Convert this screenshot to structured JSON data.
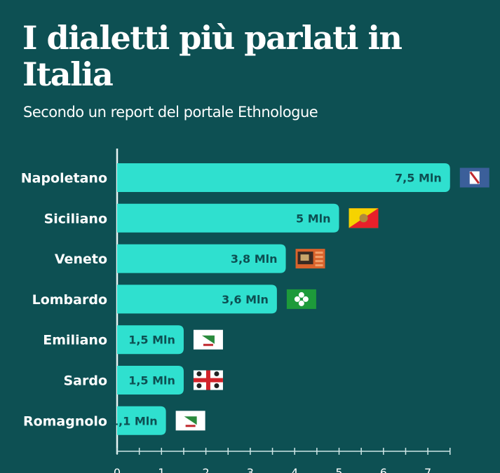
{
  "title": "I dialetti più parlati in Italia",
  "subtitle": "Secondo un report del portale Ethnologue",
  "colors": {
    "background": "#0d5053",
    "bar": "#2fe0cf",
    "label": "#0d4f52"
  },
  "chart_data": {
    "type": "bar",
    "orientation": "horizontal",
    "title": "I dialetti più parlati in Italia",
    "subtitle": "Secondo un report del portale Ethnologue",
    "categories": [
      "Napoletano",
      "Siciliano",
      "Veneto",
      "Lombardo",
      "Emiliano",
      "Sardo",
      "Romagnolo"
    ],
    "values": [
      7.5,
      5,
      3.8,
      3.6,
      1.5,
      1.5,
      1.1
    ],
    "data_labels": [
      "7,5 Mln",
      "5 Mln",
      "3,8 Mln",
      "3,6 Mln",
      "1,5 Mln",
      "1,5 Mln",
      "1,1 Mln"
    ],
    "flags": [
      "campania-flag",
      "sicily-flag",
      "veneto-flag",
      "lombardy-flag",
      "emilia-romagna-flag",
      "sardinia-flag",
      "emilia-romagna-flag"
    ],
    "xlim": [
      0,
      7.5
    ],
    "xticks": [
      "0",
      "1",
      "2",
      "3",
      "4",
      "5",
      "6",
      "7"
    ],
    "xlabel": "",
    "ylabel": "",
    "grid": false
  }
}
